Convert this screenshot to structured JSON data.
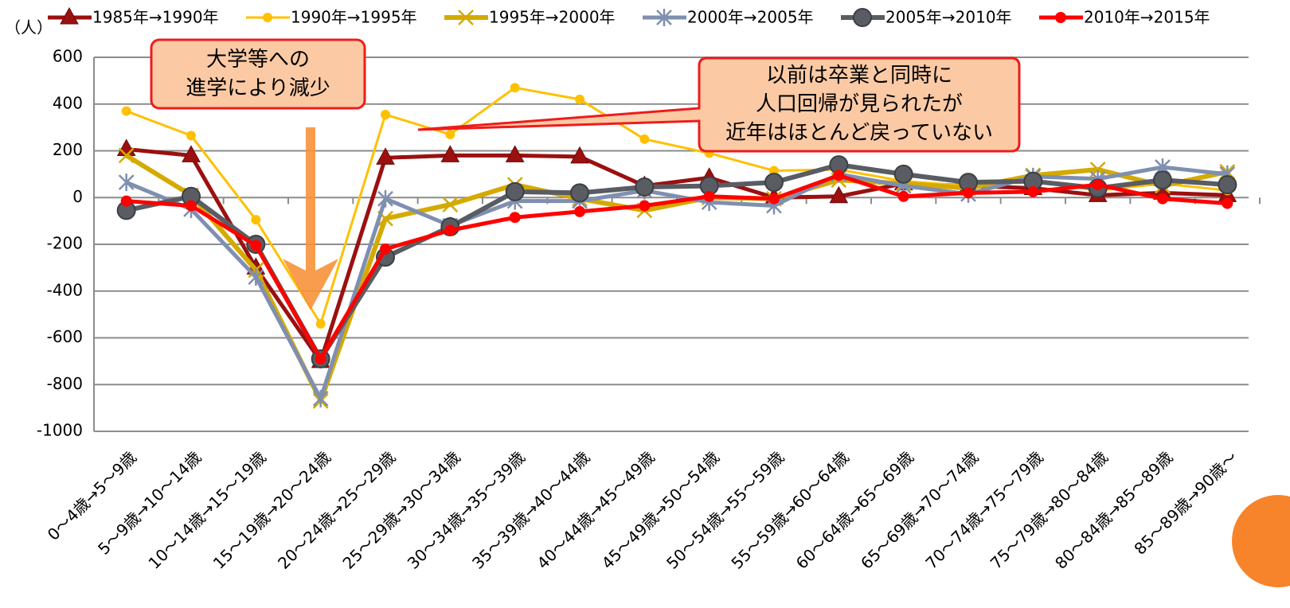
{
  "chart_data": {
    "type": "line",
    "y_unit": "（人）",
    "categories": [
      "0～4歳→5～9歳",
      "5～9歳→10～14歳",
      "10～14歳→15～19歳",
      "15～19歳→20～24歳",
      "20～24歳→25～29歳",
      "25～29歳→30～34歳",
      "30～34歳→35～39歳",
      "35～39歳→40～44歳",
      "40～44歳→45～49歳",
      "45～49歳→50～54歳",
      "50～54歳→55～59歳",
      "55～59歳→60～64歳",
      "60～64歳→65～69歳",
      "65～69歳→70～74歳",
      "70～74歳→75～79歳",
      "75～79歳→80～84歳",
      "80～84歳→85～89歳",
      "85～89歳→90歳～"
    ],
    "series": [
      {
        "name": "1985年→1990年",
        "color": "#9b1010",
        "marker": "triangle",
        "width": 5,
        "values": [
          207,
          180,
          -300,
          -700,
          170,
          180,
          180,
          175,
          50,
          85,
          0,
          5,
          60,
          50,
          40,
          10,
          20,
          10
        ]
      },
      {
        "name": "1990年→1995年",
        "color": "#ffc000",
        "marker": "circle",
        "width": 3,
        "values": [
          370,
          265,
          -95,
          -540,
          355,
          270,
          470,
          420,
          250,
          190,
          115,
          120,
          70,
          50,
          70,
          30,
          60,
          30
        ]
      },
      {
        "name": "1995年→2000年",
        "color": "#d4aa00",
        "marker": "x",
        "width": 6,
        "values": [
          180,
          10,
          -310,
          -870,
          -90,
          -30,
          55,
          -5,
          -55,
          0,
          -5,
          75,
          60,
          40,
          95,
          120,
          50,
          110
        ]
      },
      {
        "name": "2000年→2005年",
        "color": "#7f8fb0",
        "marker": "star",
        "width": 5,
        "values": [
          65,
          -50,
          -340,
          -860,
          -5,
          -120,
          -15,
          -15,
          30,
          -20,
          -35,
          100,
          50,
          15,
          90,
          80,
          130,
          100
        ]
      },
      {
        "name": "2005年→2010年",
        "color": "#595d63",
        "marker": "bigcircle",
        "width": 6,
        "values": [
          -55,
          5,
          -200,
          -690,
          -255,
          -125,
          25,
          20,
          45,
          50,
          65,
          140,
          100,
          65,
          70,
          40,
          75,
          55
        ]
      },
      {
        "name": "2010年→2015年",
        "color": "#ff0000",
        "marker": "dot",
        "width": 5,
        "values": [
          -15,
          -35,
          -205,
          -690,
          -220,
          -140,
          -85,
          -60,
          -35,
          5,
          -5,
          95,
          5,
          20,
          25,
          55,
          -5,
          -25
        ]
      }
    ],
    "ylim": [
      -1000,
      600
    ],
    "yticks": [
      -1000,
      -800,
      -600,
      -400,
      -200,
      0,
      200,
      400,
      600
    ],
    "grid": true,
    "annotations": [
      {
        "lines": [
          "大学等への",
          "進学により減少"
        ]
      },
      {
        "lines": [
          "以前は卒業と同時に",
          "人口回帰が見られたが",
          "近年はほとんど戻っていない"
        ]
      }
    ]
  }
}
